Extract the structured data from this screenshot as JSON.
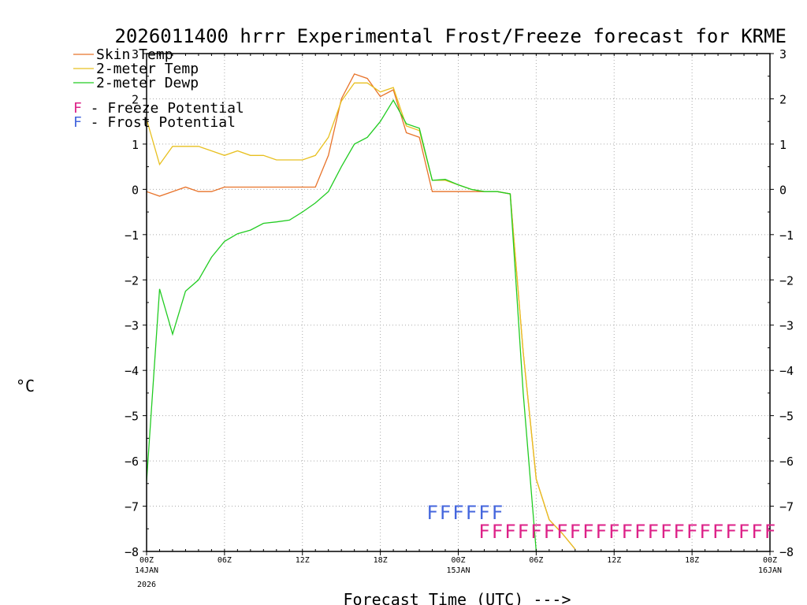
{
  "chart_data": {
    "type": "line",
    "title": "2026011400 hrrr Experimental Frost/Freeze forecast for KRME",
    "xlabel": "Forecast Time (UTC) --->",
    "ylabel": "°C",
    "ylim": [
      -8,
      3
    ],
    "yticks": [
      3,
      2,
      1,
      0,
      -1,
      -2,
      -3,
      -4,
      -5,
      -6,
      -7,
      -8
    ],
    "ytick_labels": [
      "3",
      "2",
      "1",
      "0",
      "−1",
      "−2",
      "−3",
      "−4",
      "−5",
      "−6",
      "−7",
      "−8"
    ],
    "xlim": [
      0,
      48
    ],
    "xticks": [
      {
        "x": 0,
        "label": "00Z",
        "sub1": "14JAN",
        "sub2": "2026"
      },
      {
        "x": 6,
        "label": "06Z",
        "sub1": "",
        "sub2": ""
      },
      {
        "x": 12,
        "label": "12Z",
        "sub1": "",
        "sub2": ""
      },
      {
        "x": 18,
        "label": "18Z",
        "sub1": "",
        "sub2": ""
      },
      {
        "x": 24,
        "label": "00Z",
        "sub1": "15JAN",
        "sub2": ""
      },
      {
        "x": 30,
        "label": "06Z",
        "sub1": "",
        "sub2": ""
      },
      {
        "x": 36,
        "label": "12Z",
        "sub1": "",
        "sub2": ""
      },
      {
        "x": 42,
        "label": "18Z",
        "sub1": "",
        "sub2": ""
      },
      {
        "x": 48,
        "label": "00Z",
        "sub1": "16JAN",
        "sub2": ""
      }
    ],
    "grid": true,
    "series": [
      {
        "name": "Skin Temp",
        "color": "#e8732a",
        "x": [
          0,
          1,
          2,
          3,
          4,
          5,
          6,
          7,
          8,
          9,
          10,
          11,
          12,
          13,
          14,
          15,
          16,
          17,
          18,
          19,
          20,
          21,
          22,
          23,
          24,
          25,
          26,
          27,
          28,
          29,
          30,
          31,
          32,
          33
        ],
        "y": [
          -0.05,
          -0.15,
          -0.05,
          0.05,
          -0.05,
          -0.05,
          0.05,
          0.05,
          0.05,
          0.05,
          0.05,
          0.05,
          0.05,
          0.05,
          0.75,
          2.0,
          2.55,
          2.45,
          2.05,
          2.2,
          1.25,
          1.15,
          -0.05,
          -0.05,
          -0.05,
          -0.05,
          -0.05,
          -0.05,
          -0.1,
          -3.6,
          -6.4,
          -7.3,
          -7.6,
          -7.95
        ]
      },
      {
        "name": "2-meter Temp",
        "color": "#e8c020",
        "x": [
          0,
          1,
          2,
          3,
          4,
          5,
          6,
          7,
          8,
          9,
          10,
          11,
          12,
          13,
          14,
          15,
          16,
          17,
          18,
          19,
          20,
          21,
          22,
          23,
          24,
          25,
          26,
          27,
          28,
          29,
          30,
          31,
          32,
          33
        ],
        "y": [
          1.55,
          0.55,
          0.95,
          0.95,
          0.95,
          0.85,
          0.75,
          0.85,
          0.75,
          0.75,
          0.65,
          0.65,
          0.65,
          0.75,
          1.15,
          1.95,
          2.35,
          2.35,
          2.15,
          2.25,
          1.4,
          1.3,
          0.2,
          0.2,
          0.1,
          0.0,
          -0.05,
          -0.05,
          -0.1,
          -3.6,
          -6.4,
          -7.3,
          -7.6,
          -7.95
        ]
      },
      {
        "name": "2-meter Dewp",
        "color": "#22cc22",
        "x": [
          0,
          1,
          2,
          3,
          4,
          5,
          6,
          7,
          8,
          9,
          10,
          11,
          12,
          13,
          14,
          15,
          16,
          17,
          18,
          19,
          20,
          21,
          22,
          23,
          24,
          25,
          26,
          27,
          28,
          29,
          30
        ],
        "y": [
          -6.45,
          -2.2,
          -3.2,
          -2.25,
          -2.0,
          -1.5,
          -1.15,
          -0.98,
          -0.9,
          -0.75,
          -0.72,
          -0.68,
          -0.5,
          -0.3,
          -0.05,
          0.5,
          1.0,
          1.15,
          1.5,
          1.97,
          1.45,
          1.35,
          0.2,
          0.22,
          0.1,
          0.0,
          -0.05,
          -0.05,
          -0.1,
          -4.5,
          -8.0
        ]
      }
    ],
    "legend": {
      "position": "top-left",
      "items": [
        {
          "label": "Skin Temp",
          "color": "#e8732a"
        },
        {
          "label": "2-meter Temp",
          "color": "#e8c020"
        },
        {
          "label": "2-meter Dewp",
          "color": "#22cc22"
        }
      ],
      "flags": [
        {
          "letter": "F",
          "text": " - Freeze Potential",
          "color": "#dd2288"
        },
        {
          "letter": "F",
          "text": " - Frost Potential",
          "color": "#4466dd"
        }
      ]
    },
    "frost_potential": {
      "hours": [
        22,
        23,
        24,
        25,
        26,
        27
      ],
      "letter": "F",
      "color": "#4466dd"
    },
    "freeze_potential": {
      "hours": [
        26,
        27,
        28,
        29,
        30,
        31,
        32,
        33,
        34,
        35,
        36,
        37,
        38,
        39,
        40,
        41,
        42,
        43,
        44,
        45,
        46,
        47,
        48
      ],
      "letter": "F",
      "color": "#dd2288"
    }
  }
}
